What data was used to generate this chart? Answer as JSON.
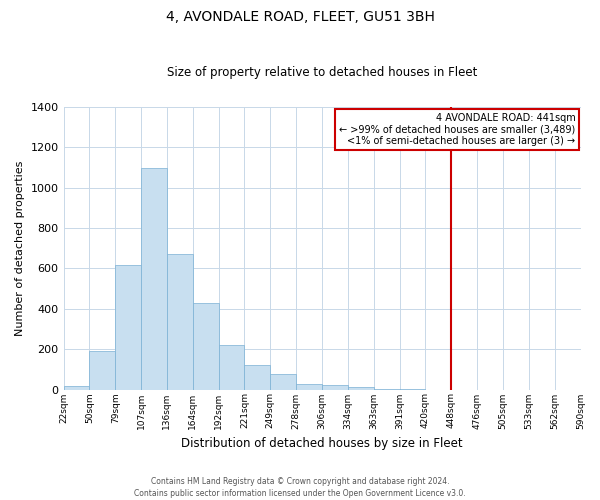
{
  "title": "4, AVONDALE ROAD, FLEET, GU51 3BH",
  "subtitle": "Size of property relative to detached houses in Fleet",
  "xlabel": "Distribution of detached houses by size in Fleet",
  "ylabel": "Number of detached properties",
  "bar_color": "#c8dff0",
  "bar_edge_color": "#7ab0d4",
  "bar_color_right": "#d8eaf8",
  "background_color": "#ffffff",
  "grid_color": "#c8d8e8",
  "tick_labels": [
    "22sqm",
    "50sqm",
    "79sqm",
    "107sqm",
    "136sqm",
    "164sqm",
    "192sqm",
    "221sqm",
    "249sqm",
    "278sqm",
    "306sqm",
    "334sqm",
    "363sqm",
    "391sqm",
    "420sqm",
    "448sqm",
    "476sqm",
    "505sqm",
    "533sqm",
    "562sqm",
    "590sqm"
  ],
  "bar_heights": [
    15,
    190,
    615,
    1100,
    670,
    430,
    220,
    120,
    75,
    28,
    20,
    10,
    5,
    3,
    0,
    0,
    0,
    0,
    0,
    0
  ],
  "ylim": [
    0,
    1400
  ],
  "yticks": [
    0,
    200,
    400,
    600,
    800,
    1000,
    1200,
    1400
  ],
  "vline_index": 15,
  "vline_color": "#cc0000",
  "legend_title": "4 AVONDALE ROAD: 441sqm",
  "legend_line1": "← >99% of detached houses are smaller (3,489)",
  "legend_line2": "<1% of semi-detached houses are larger (3) →",
  "footer1": "Contains HM Land Registry data © Crown copyright and database right 2024.",
  "footer2": "Contains public sector information licensed under the Open Government Licence v3.0.",
  "n_bars": 20
}
